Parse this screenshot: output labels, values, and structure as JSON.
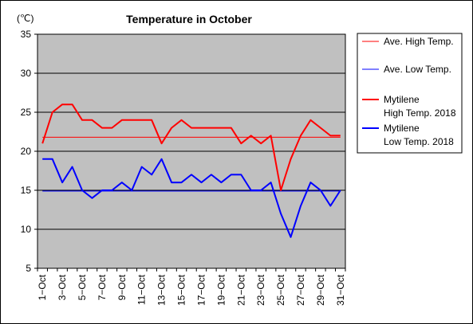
{
  "chart_data": {
    "type": "line",
    "title": "Temperature in October",
    "unit_label": "(℃)",
    "xlabel": "",
    "ylabel": "",
    "ylim": [
      5,
      35
    ],
    "yticks": [
      5,
      10,
      15,
      20,
      25,
      30,
      35
    ],
    "grid": "horizontal",
    "legend_position": "right",
    "categories": [
      "1-Oct",
      "2-Oct",
      "3-Oct",
      "4-Oct",
      "5-Oct",
      "6-Oct",
      "7-Oct",
      "8-Oct",
      "9-Oct",
      "10-Oct",
      "11-Oct",
      "12-Oct",
      "13-Oct",
      "14-Oct",
      "15-Oct",
      "16-Oct",
      "17-Oct",
      "18-Oct",
      "19-Oct",
      "20-Oct",
      "21-Oct",
      "22-Oct",
      "23-Oct",
      "24-Oct",
      "25-Oct",
      "26-Oct",
      "27-Oct",
      "28-Oct",
      "29-Oct",
      "30-Oct",
      "31-Oct"
    ],
    "x_tick_labels": [
      "1−Oct",
      "3−Oct",
      "5−Oct",
      "7−Oct",
      "9−Oct",
      "11−Oct",
      "13−Oct",
      "15−Oct",
      "17−Oct",
      "19−Oct",
      "21−Oct",
      "23−Oct",
      "25−Oct",
      "27−Oct",
      "29−Oct",
      "31−Oct"
    ],
    "series": [
      {
        "name": "Ave. High Temp.",
        "color": "#ff0000",
        "style": "thin",
        "values": [
          21.8,
          21.8,
          21.8,
          21.8,
          21.8,
          21.8,
          21.8,
          21.8,
          21.8,
          21.8,
          21.8,
          21.8,
          21.8,
          21.8,
          21.8,
          21.8,
          21.8,
          21.8,
          21.8,
          21.8,
          21.8,
          21.8,
          21.8,
          21.8,
          21.8,
          21.8,
          21.8,
          21.8,
          21.8,
          21.8,
          21.8
        ]
      },
      {
        "name": "Ave. Low Temp.",
        "color": "#0000ff",
        "style": "thin",
        "values": [
          14.9,
          14.9,
          14.9,
          14.9,
          14.9,
          14.9,
          14.9,
          14.9,
          14.9,
          14.9,
          14.9,
          14.9,
          14.9,
          14.9,
          14.9,
          14.9,
          14.9,
          14.9,
          14.9,
          14.9,
          14.9,
          14.9,
          14.9,
          14.9,
          14.9,
          14.9,
          14.9,
          14.9,
          14.9,
          14.9,
          14.9
        ]
      },
      {
        "name": "Mytilene\nHigh Temp. 2018",
        "label_lines": [
          "Mytilene",
          "High Temp. 2018"
        ],
        "color": "#ff0000",
        "style": "thick",
        "values": [
          21,
          25,
          26,
          26,
          24,
          24,
          23,
          23,
          24,
          24,
          24,
          24,
          21,
          23,
          24,
          23,
          23,
          23,
          23,
          23,
          21,
          22,
          21,
          22,
          15,
          19,
          22,
          24,
          23,
          22,
          22
        ]
      },
      {
        "name": "Mytilene\nLow Temp. 2018",
        "label_lines": [
          "Mytilene",
          "Low Temp. 2018"
        ],
        "color": "#0000ff",
        "style": "thick",
        "values": [
          19,
          19,
          16,
          18,
          15,
          14,
          15,
          15,
          16,
          15,
          18,
          17,
          19,
          16,
          16,
          17,
          16,
          17,
          16,
          17,
          17,
          15,
          15,
          16,
          12,
          9,
          13,
          16,
          15,
          13,
          15
        ]
      }
    ]
  }
}
